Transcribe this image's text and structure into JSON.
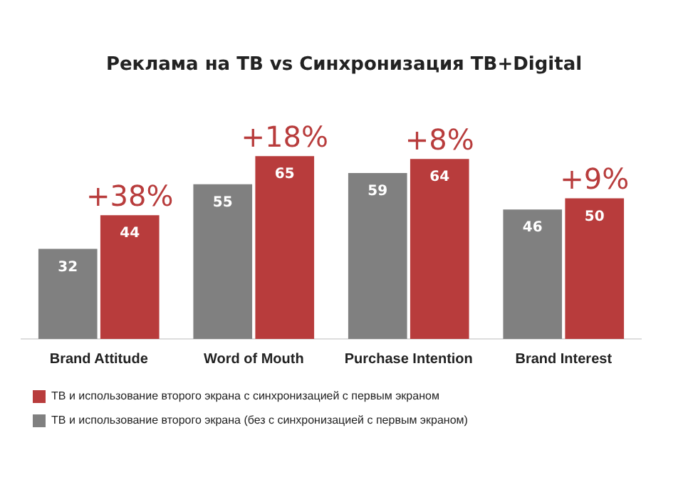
{
  "chart_data": {
    "type": "bar",
    "title": "Реклама на ТВ vs Синхронизация ТВ+Digital",
    "categories": [
      "Brand Attitude",
      "Word of Mouth",
      "Purchase Intention",
      "Brand Interest"
    ],
    "series": [
      {
        "name": "ТВ и использование второго экрана (без с синхронизацией с первым экраном)",
        "color": "#808080",
        "values": [
          32,
          55,
          59,
          46
        ]
      },
      {
        "name": "ТВ и использование второго экрана с синхронизацией с первым экраном",
        "color": "#b83c3c",
        "values": [
          44,
          65,
          64,
          50
        ]
      }
    ],
    "data_labels": true,
    "legend": "bottom",
    "grid": false,
    "annotations": [
      {
        "text": "+38%",
        "x": "Brand Attitude",
        "y": 44
      },
      {
        "text": "+18%",
        "x": "Word of Mouth",
        "y": 65
      },
      {
        "text": "+8%",
        "x": "Purchase Intention",
        "y": 64
      },
      {
        "text": "+9%",
        "x": "Brand Interest",
        "y": 50
      }
    ]
  }
}
